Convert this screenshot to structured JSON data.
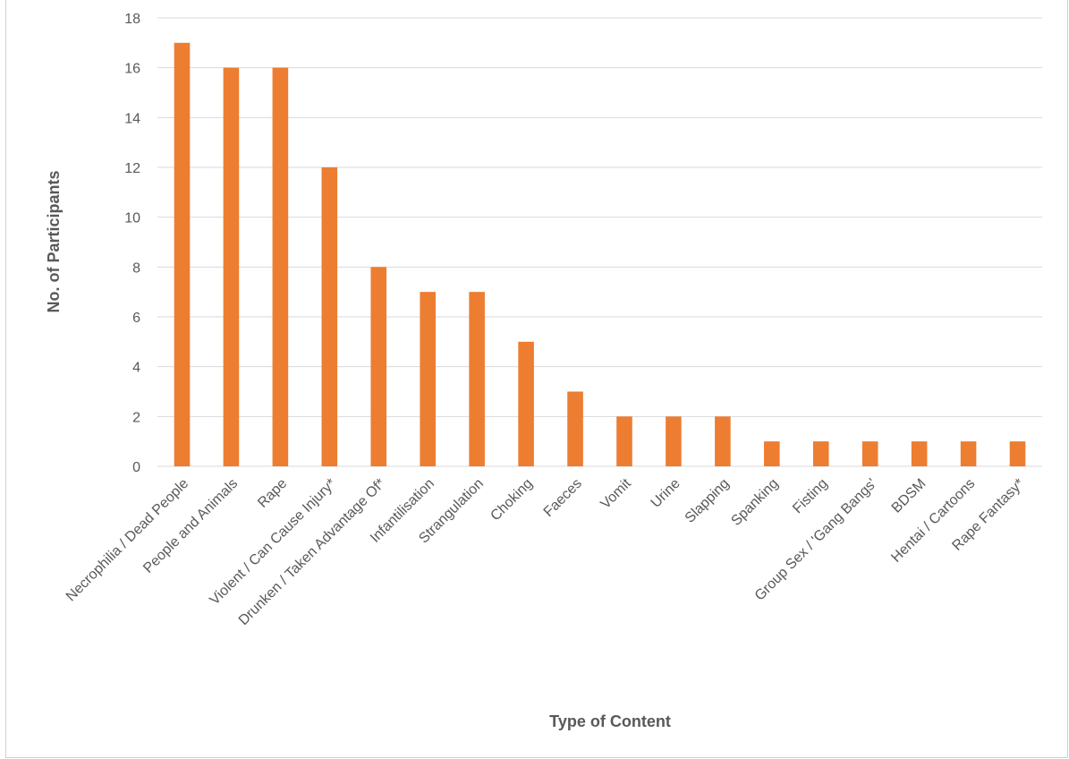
{
  "chart_data": {
    "type": "bar",
    "xlabel": "Type of Content",
    "ylabel": "No. of Participants",
    "ylim": [
      0,
      18
    ],
    "yticks": [
      0,
      2,
      4,
      6,
      8,
      10,
      12,
      14,
      16,
      18
    ],
    "grid": true,
    "bar_color": "#ED7D31",
    "categories": [
      "Necrophilia / Dead People",
      "People and Animals",
      "Rape",
      "Violent / Can Cause Injury*",
      "Drunken / Taken Advantage Of*",
      "Infantilisation",
      "Strangulation",
      "Choking",
      "Faeces",
      "Vomit",
      "Urine",
      "Slapping",
      "Spanking",
      "Fisting",
      "Group Sex / 'Gang Bangs'",
      "BDSM",
      "Hentai / Cartoons",
      "Rape Fantasy*"
    ],
    "values": [
      17,
      16,
      16,
      12,
      8,
      7,
      7,
      5,
      3,
      2,
      2,
      2,
      1,
      1,
      1,
      1,
      1,
      1
    ]
  }
}
